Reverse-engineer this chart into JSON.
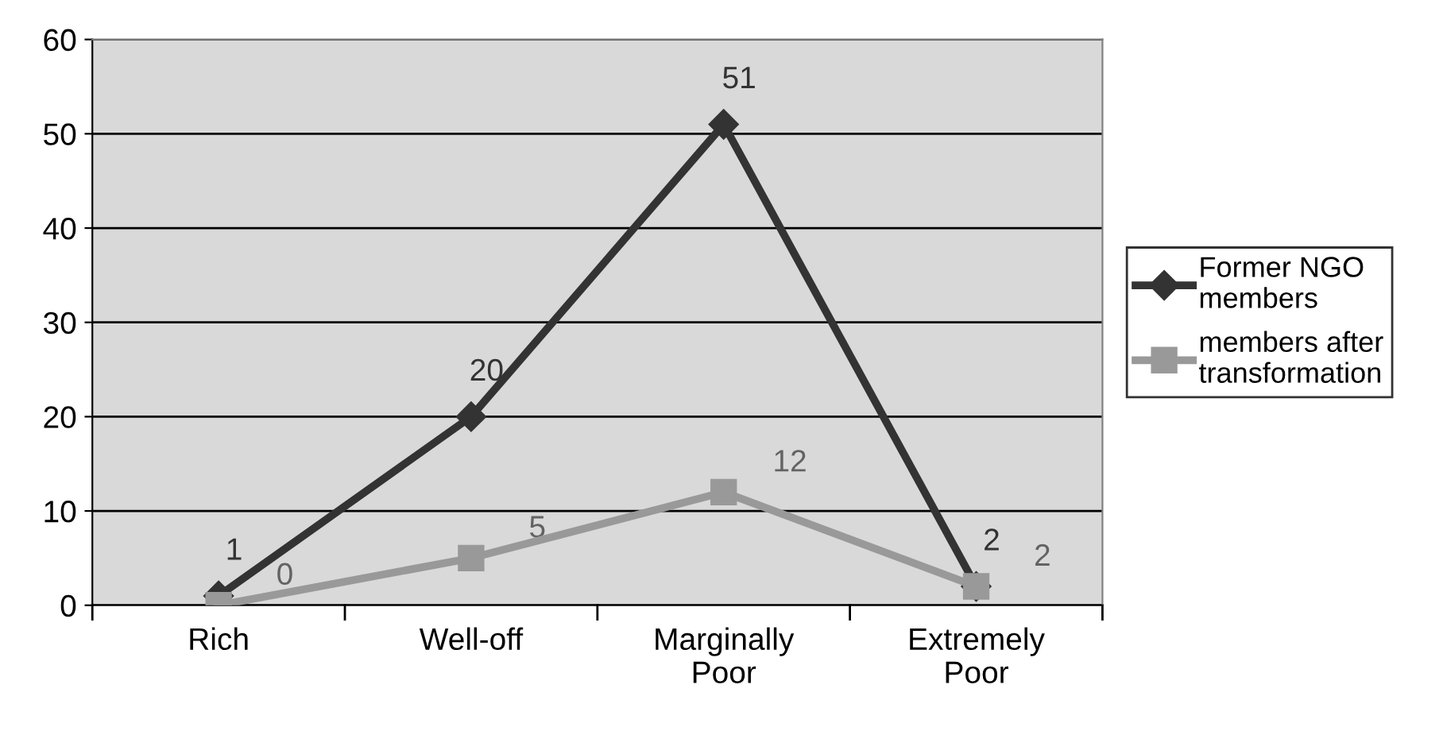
{
  "chart_data": {
    "type": "line",
    "categories": [
      "Rich",
      "Well-off",
      "Marginally\nPoor",
      "Extremely\nPoor"
    ],
    "series": [
      {
        "name": "Former NGO\nmembers",
        "color": "#333333",
        "values": [
          1,
          20,
          51,
          2
        ],
        "marker": "diamond"
      },
      {
        "name": "members after\ntransformation",
        "color": "#999999",
        "values": [
          0,
          5,
          12,
          2
        ],
        "marker": "square"
      }
    ],
    "ylim": [
      0,
      60
    ],
    "yticks": [
      0,
      10,
      20,
      30,
      40,
      50,
      60
    ],
    "grid": "y",
    "legend": "right",
    "data_labels": true,
    "line_style": "solid"
  }
}
